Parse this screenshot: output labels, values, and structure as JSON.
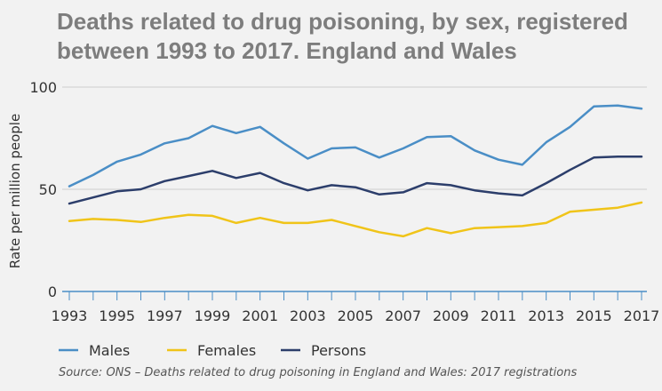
{
  "chart_data": {
    "type": "line",
    "title": "Deaths related to drug poisoning, by sex, registered between 1993 to 2017. England and Wales",
    "xlabel": "",
    "ylabel": "Rate per million people",
    "xlim": [
      1993,
      2017
    ],
    "ylim": [
      0,
      100
    ],
    "yticks": [
      0,
      50,
      100
    ],
    "xtick_labels": [
      "1993",
      "1995",
      "1997",
      "1999",
      "2001",
      "2003",
      "2005",
      "2007",
      "2009",
      "2011",
      "2013",
      "2015",
      "2017"
    ],
    "grid": "horizontal",
    "legend_position": "bottom-left",
    "x": [
      1993,
      1994,
      1995,
      1996,
      1997,
      1998,
      1999,
      2000,
      2001,
      2002,
      2003,
      2004,
      2005,
      2006,
      2007,
      2008,
      2009,
      2010,
      2011,
      2012,
      2013,
      2014,
      2015,
      2016,
      2017
    ],
    "series": [
      {
        "name": "Males",
        "color": "#4a8ec6",
        "values": [
          51.5,
          57,
          63.5,
          67,
          72.5,
          75,
          81,
          77.5,
          80.5,
          72.5,
          65,
          70,
          70.5,
          65.5,
          70,
          75.5,
          76,
          69,
          64.5,
          62,
          73,
          80.5,
          90.5,
          91,
          89.5
        ]
      },
      {
        "name": "Females",
        "color": "#f0c419",
        "values": [
          34.5,
          35.5,
          35,
          34,
          36,
          37.5,
          37,
          33.5,
          36,
          33.5,
          33.5,
          35,
          32,
          29,
          27,
          31,
          28.5,
          31,
          31.5,
          32,
          33.5,
          39,
          40,
          41,
          43.5
        ]
      },
      {
        "name": "Persons",
        "color": "#2c3e6b",
        "values": [
          43,
          46,
          49,
          50,
          54,
          56.5,
          59,
          55.5,
          58,
          53,
          49.5,
          52,
          51,
          47.5,
          48.5,
          53,
          52,
          49.5,
          48,
          47,
          53,
          59.5,
          65.5,
          66,
          66
        ]
      }
    ]
  },
  "source": "Source: ONS – Deaths related to drug poisoning in England and Wales: 2017 registrations"
}
